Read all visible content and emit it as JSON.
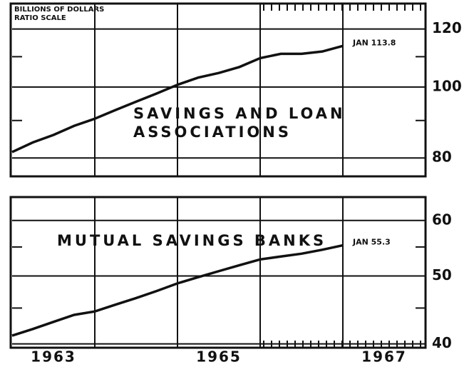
{
  "note_label": [
    "BILLIONS OF DOLLARS",
    "RATIO SCALE"
  ],
  "chart_data": [
    {
      "type": "line",
      "title": [
        "SAVINGS AND LOAN",
        "ASSOCIATIONS"
      ],
      "log_scale": true,
      "xlim": [
        1963,
        1968
      ],
      "xgrid": [
        1964,
        1965,
        1966,
        1967
      ],
      "ylim": [
        75.5,
        130
      ],
      "yticks": [
        80,
        100,
        120
      ],
      "yminor": [
        90,
        110
      ],
      "series": [
        {
          "color": "#111111",
          "x": [
            1963.0,
            1963.25,
            1963.5,
            1963.75,
            1964.0,
            1964.25,
            1964.5,
            1964.75,
            1965.0,
            1965.25,
            1965.5,
            1965.75,
            1966.0,
            1966.25,
            1966.5,
            1966.75,
            1967.0
          ],
          "values": [
            81.5,
            84,
            86,
            88.5,
            90.5,
            93,
            95.5,
            98,
            100.7,
            103,
            104.5,
            106.5,
            109.5,
            111,
            111,
            111.8,
            113.8
          ]
        }
      ],
      "end_label": "JAN 113.8"
    },
    {
      "type": "line",
      "title": [
        "MUTUAL SAVINGS BANKS"
      ],
      "log_scale": true,
      "xlim": [
        1963,
        1968
      ],
      "xgrid": [
        1964,
        1965,
        1966,
        1967
      ],
      "xticks": [
        {
          "value": 1963.5,
          "label": "1963"
        },
        {
          "value": 1965.5,
          "label": "1965"
        },
        {
          "value": 1967.5,
          "label": "1967"
        }
      ],
      "ylim": [
        39.5,
        64.8
      ],
      "yticks": [
        40,
        50,
        60
      ],
      "yminor": [
        45,
        55
      ],
      "series": [
        {
          "color": "#111111",
          "x": [
            1963.0,
            1963.25,
            1963.5,
            1963.75,
            1964.0,
            1964.25,
            1964.5,
            1964.75,
            1965.0,
            1965.25,
            1965.5,
            1965.75,
            1966.0,
            1966.25,
            1966.5,
            1966.75,
            1967.0
          ],
          "values": [
            41.1,
            42,
            43,
            44,
            44.5,
            45.5,
            46.5,
            47.6,
            48.8,
            49.8,
            50.8,
            51.8,
            52.8,
            53.3,
            53.8,
            54.5,
            55.3
          ]
        }
      ],
      "end_label": "JAN 55.3"
    }
  ]
}
